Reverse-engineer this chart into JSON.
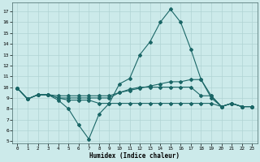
{
  "xlabel": "Humidex (Indice chaleur)",
  "bg_color": "#cceaea",
  "grid_color": "#b0d4d4",
  "line_color": "#1a6666",
  "xlim": [
    -0.5,
    23.5
  ],
  "ylim": [
    4.8,
    17.8
  ],
  "yticks": [
    5,
    6,
    7,
    8,
    9,
    10,
    11,
    12,
    13,
    14,
    15,
    16,
    17
  ],
  "xticks": [
    0,
    1,
    2,
    3,
    4,
    5,
    6,
    7,
    8,
    9,
    10,
    11,
    12,
    13,
    14,
    15,
    16,
    17,
    18,
    19,
    20,
    21,
    22,
    23
  ],
  "line1_x": [
    0,
    1,
    2,
    3,
    4,
    5,
    6,
    7,
    8,
    9,
    10,
    11,
    12,
    13,
    14,
    15,
    16,
    17,
    18,
    19,
    20,
    21,
    22,
    23
  ],
  "line1_y": [
    9.9,
    8.9,
    9.3,
    9.3,
    8.8,
    8.0,
    6.5,
    5.2,
    7.5,
    8.5,
    10.3,
    10.8,
    13.0,
    14.2,
    16.0,
    17.2,
    16.0,
    13.5,
    10.7,
    9.0,
    8.2,
    8.5,
    8.2,
    8.2
  ],
  "line2_x": [
    0,
    1,
    2,
    3,
    4,
    5,
    6,
    7,
    8,
    9,
    10,
    11,
    12,
    13,
    14,
    15,
    16,
    17,
    18,
    19,
    20,
    21,
    22,
    23
  ],
  "line2_y": [
    9.9,
    8.9,
    9.3,
    9.3,
    9.2,
    9.2,
    9.2,
    9.2,
    9.2,
    9.2,
    9.5,
    9.7,
    9.9,
    10.1,
    10.3,
    10.5,
    10.5,
    10.7,
    10.7,
    9.2,
    8.2,
    8.5,
    8.2,
    8.2
  ],
  "line3_x": [
    0,
    1,
    2,
    3,
    4,
    5,
    6,
    7,
    8,
    9,
    10,
    11,
    12,
    13,
    14,
    15,
    16,
    17,
    18,
    19,
    20,
    21,
    22,
    23
  ],
  "line3_y": [
    9.9,
    8.9,
    9.3,
    9.3,
    9.0,
    8.8,
    8.8,
    8.8,
    8.5,
    8.5,
    8.5,
    8.5,
    8.5,
    8.5,
    8.5,
    8.5,
    8.5,
    8.5,
    8.5,
    8.5,
    8.2,
    8.5,
    8.2,
    8.2
  ],
  "line4_x": [
    0,
    1,
    2,
    3,
    4,
    5,
    6,
    7,
    8,
    9,
    10,
    11,
    12,
    13,
    14,
    15,
    16,
    17,
    18,
    19,
    20,
    21,
    22,
    23
  ],
  "line4_y": [
    9.9,
    8.9,
    9.3,
    9.3,
    9.0,
    9.0,
    9.0,
    9.0,
    9.0,
    9.0,
    9.5,
    9.8,
    10.0,
    10.0,
    10.0,
    10.0,
    10.0,
    10.0,
    9.2,
    9.2,
    8.2,
    8.5,
    8.2,
    8.2
  ]
}
